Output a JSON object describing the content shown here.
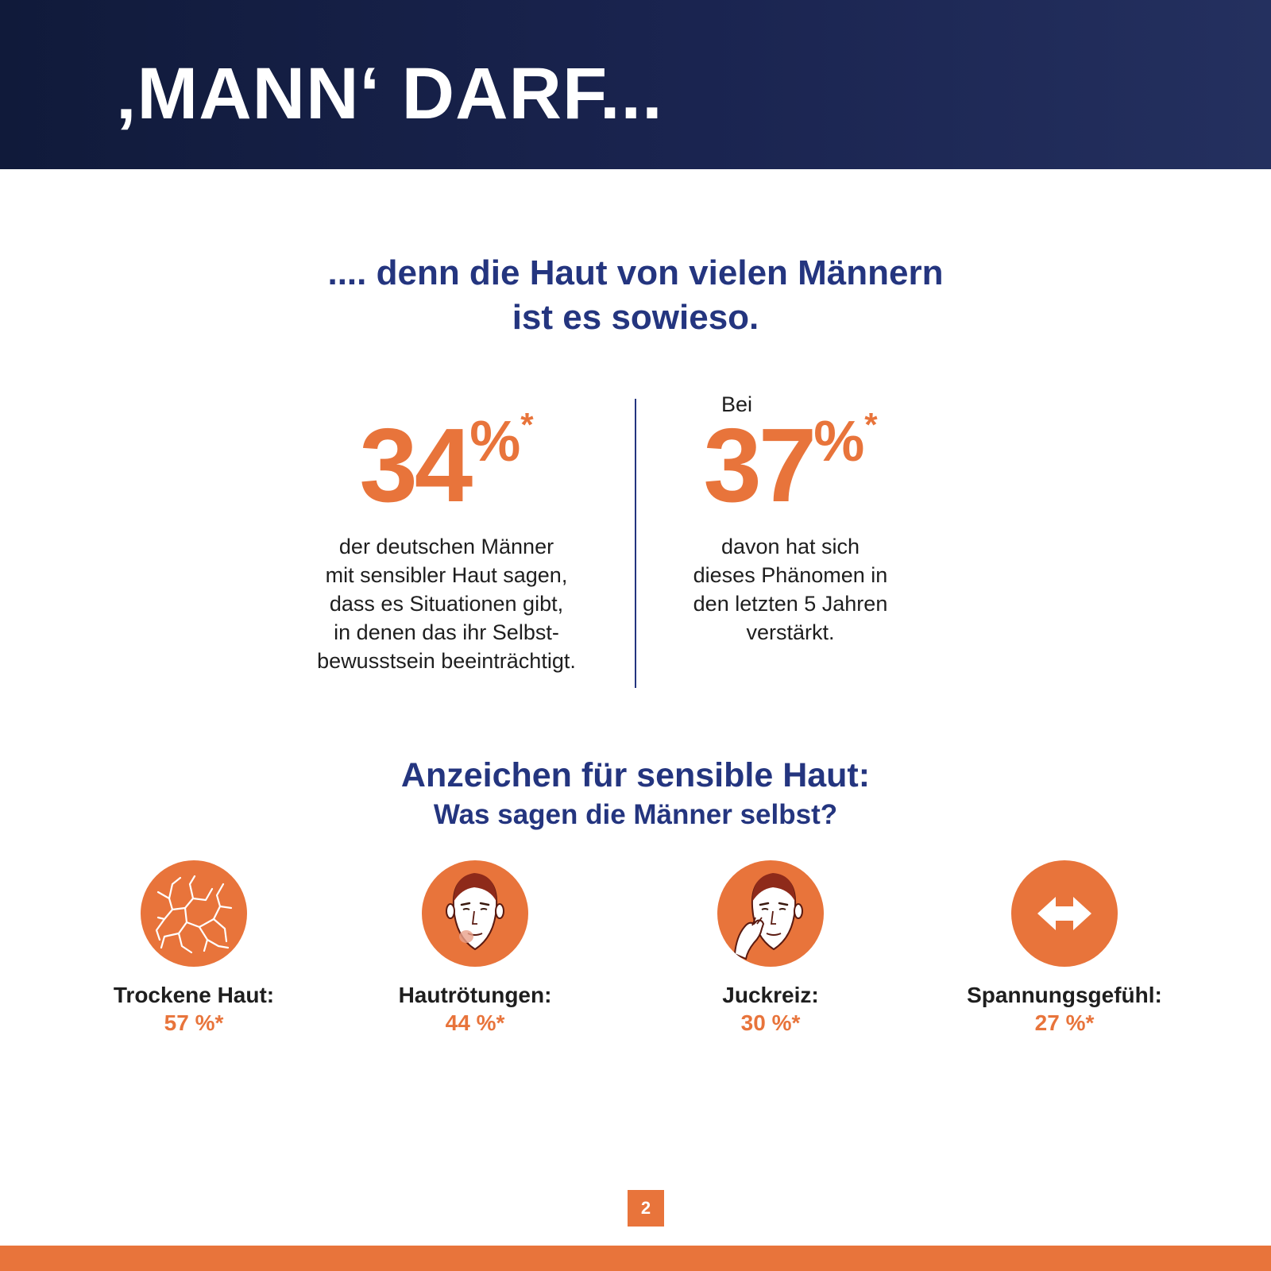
{
  "header": {
    "title": "‚MANN‘ DARF..."
  },
  "subtitle": {
    "line1": ".... denn die Haut von vielen Männern",
    "line2": "ist es sowieso."
  },
  "stats": [
    {
      "prefix": "",
      "value": "34",
      "percent": "%",
      "asterisk": "*",
      "description": [
        "der deutschen Männer",
        "mit sensibler Haut sagen,",
        "dass es Situationen gibt,",
        "in denen das ihr Selbst-",
        "bewusstsein beeinträchtigt."
      ]
    },
    {
      "prefix": "Bei",
      "value": "37",
      "percent": "%",
      "asterisk": "*",
      "description": [
        "davon hat sich",
        "dieses Phänomen in",
        "den letzten 5 Jahren",
        "verstärkt."
      ]
    }
  ],
  "section": {
    "title": "Anzeichen für sensible Haut:",
    "subtitle": "Was sagen die Männer selbst?"
  },
  "symptoms": [
    {
      "label": "Trockene Haut:",
      "value": "57 %*",
      "icon": "cracked-skin-icon"
    },
    {
      "label": "Hautrötungen:",
      "value": "44 %*",
      "icon": "red-face-icon"
    },
    {
      "label": "Juckreiz:",
      "value": "30 %*",
      "icon": "itching-face-icon"
    },
    {
      "label": "Spannungsgefühl:",
      "value": "27 %*",
      "icon": "double-arrow-icon"
    }
  ],
  "page_number": "2",
  "colors": {
    "navy": "#1a2450",
    "accent_orange": "#e8743b",
    "heading_blue": "#24357f"
  }
}
